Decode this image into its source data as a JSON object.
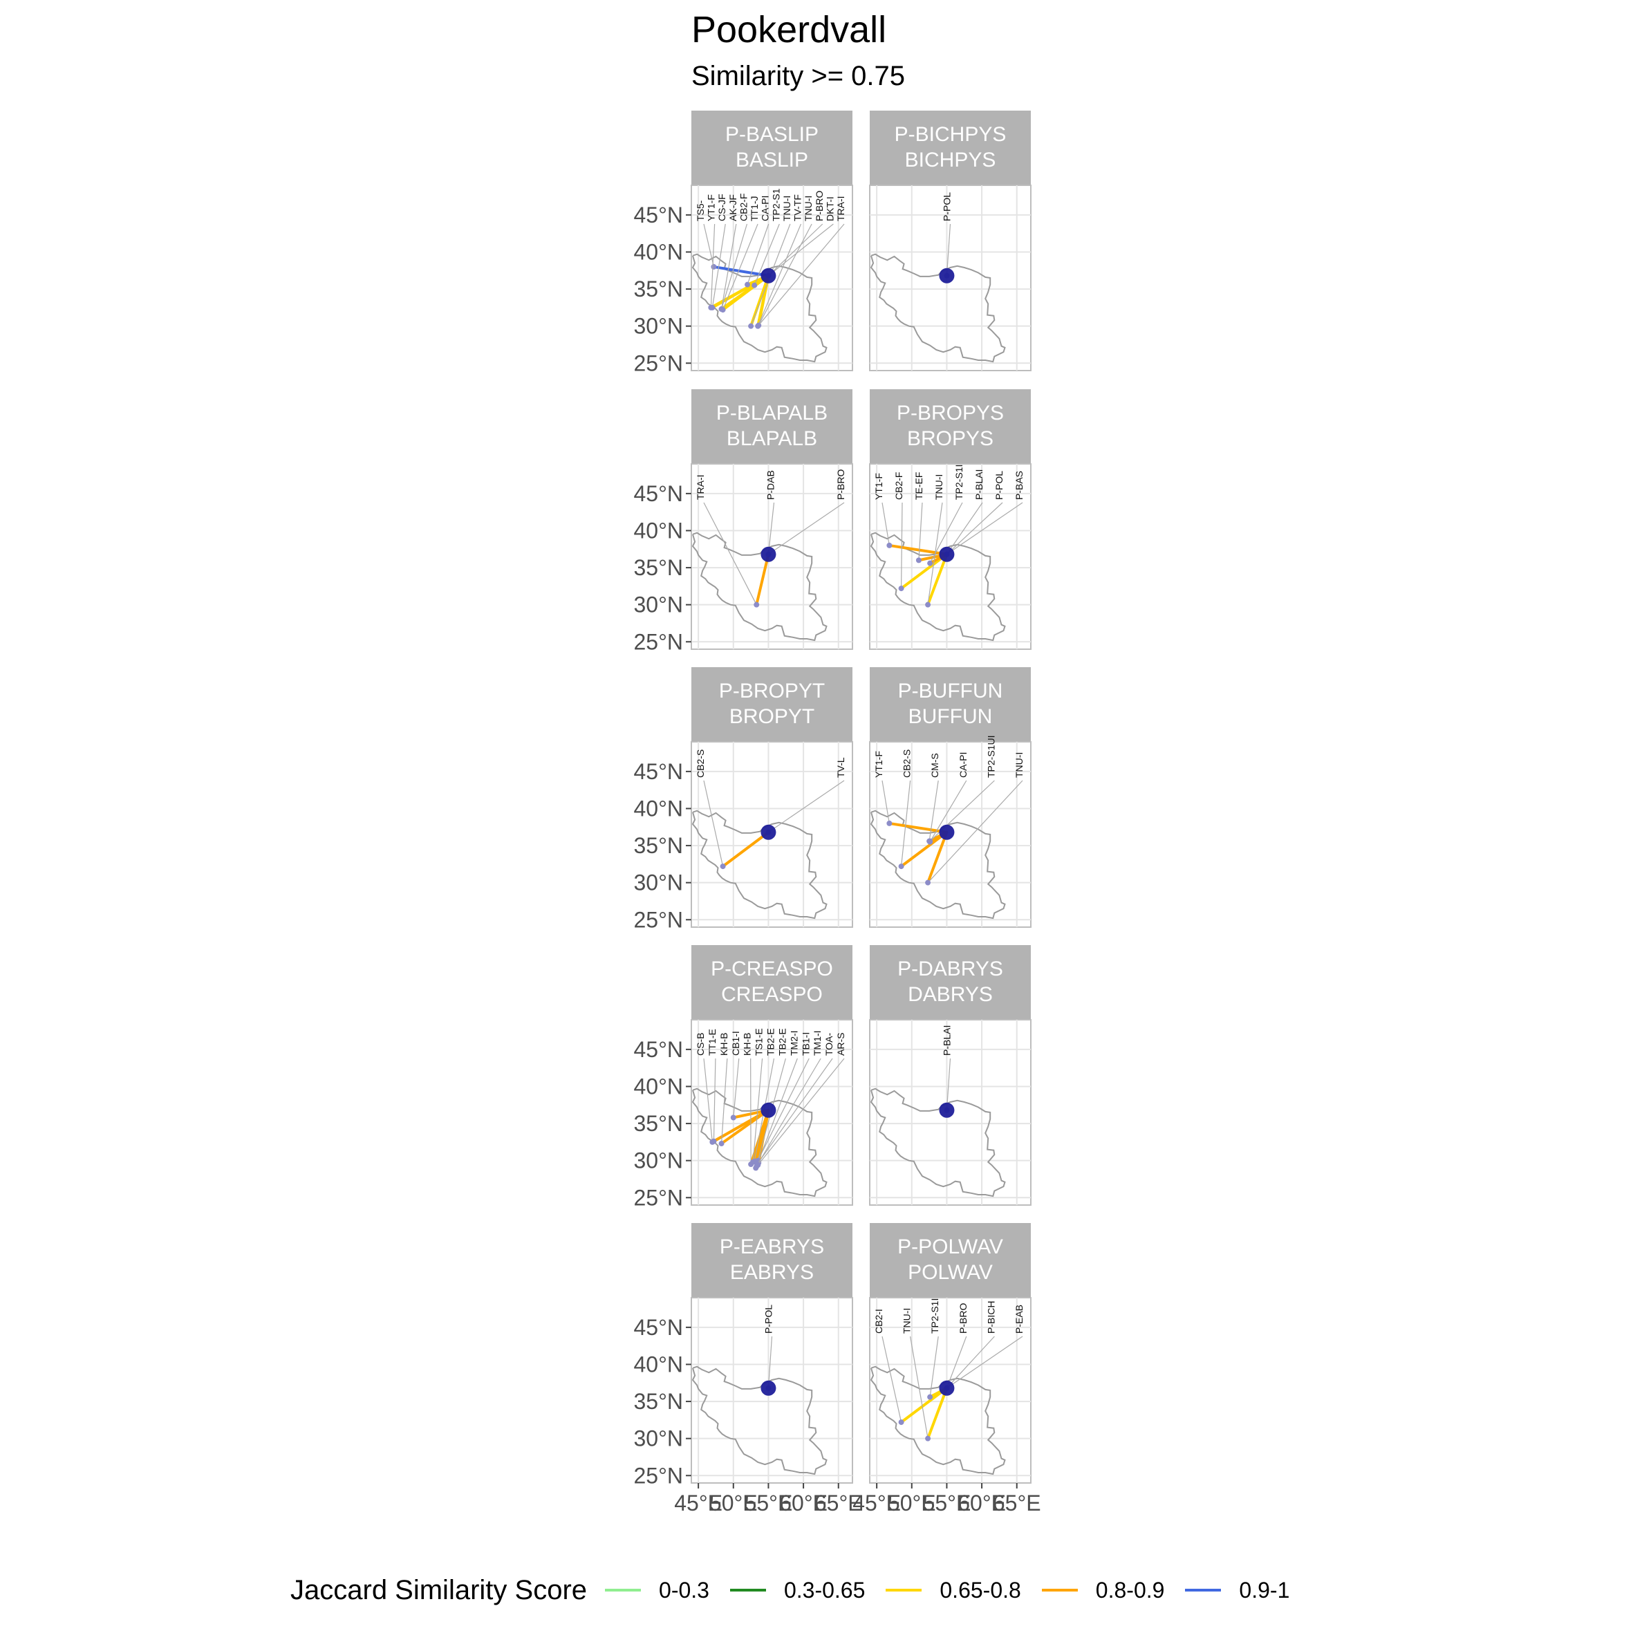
{
  "title": "Pookerdvall",
  "subtitle": "Similarity >= 0.75",
  "legend": {
    "title": "Jaccard Similarity Score",
    "items": [
      {
        "label": "0-0.3",
        "color": "#90EE90"
      },
      {
        "label": "0.3-0.65",
        "color": "#228B22"
      },
      {
        "label": "0.65-0.8",
        "color": "#FFD700"
      },
      {
        "label": "0.8-0.9",
        "color": "#FFA500"
      },
      {
        "label": "0.9-1",
        "color": "#4169E1"
      }
    ]
  },
  "chart_data": {
    "type": "map",
    "xlabel": "",
    "ylabel": "",
    "xlim": [
      44,
      67
    ],
    "ylim": [
      24,
      49
    ],
    "x_ticks": [
      "45°E",
      "50°E",
      "55°E",
      "60°E",
      "65°E"
    ],
    "y_ticks": [
      "45°N",
      "40°N",
      "35°N",
      "30°N",
      "25°N"
    ],
    "x_tick_values": [
      45,
      50,
      55,
      60,
      65
    ],
    "y_tick_values": [
      45,
      40,
      35,
      30,
      25
    ],
    "source_point": {
      "lon": 55.0,
      "lat": 36.8
    },
    "panels": [
      {
        "strip": [
          "P-BASLIP",
          "BASLIP"
        ],
        "links": [
          {
            "label": "TS5-",
            "lon": 47.2,
            "lat": 38.0,
            "cat": "0.9-1"
          },
          {
            "label": "YT1-F",
            "lon": 46.8,
            "lat": 32.5,
            "cat": "0.65-0.8"
          },
          {
            "label": "CS-JF",
            "lon": 47.0,
            "lat": 32.5,
            "cat": "0.65-0.8"
          },
          {
            "label": "AK-JF",
            "lon": 48.3,
            "lat": 32.3,
            "cat": "0.65-0.8"
          },
          {
            "label": "CB2-F",
            "lon": 48.3,
            "lat": 32.3,
            "cat": "0.65-0.8"
          },
          {
            "label": "TT1-J",
            "lon": 48.5,
            "lat": 32.2,
            "cat": "0.65-0.8"
          },
          {
            "label": "CA-PI",
            "lon": 52.0,
            "lat": 35.6,
            "cat": "0.65-0.8"
          },
          {
            "label": "TP2-S1",
            "lon": 53.0,
            "lat": 35.5,
            "cat": "0.65-0.8"
          },
          {
            "label": "TNU-I",
            "lon": 52.5,
            "lat": 30.0,
            "cat": "0.65-0.8"
          },
          {
            "label": "TV-TF",
            "lon": 53.5,
            "lat": 30.0,
            "cat": "0.65-0.8"
          },
          {
            "label": "TNU-I",
            "lon": 53.6,
            "lat": 30.1,
            "cat": "0.65-0.8"
          },
          {
            "label": "P-BRO",
            "lon": 55.0,
            "lat": 36.8,
            "cat": "0.65-0.8"
          },
          {
            "label": "DKT-I",
            "lon": 55.0,
            "lat": 36.8,
            "cat": "0.65-0.8"
          },
          {
            "label": "TRA-I",
            "lon": 53.5,
            "lat": 30.0,
            "cat": "0.65-0.8"
          }
        ]
      },
      {
        "strip": [
          "P-BICHPYS",
          "BICHPYS"
        ],
        "links": [
          {
            "label": "P-POL",
            "lon": 55.0,
            "lat": 36.8,
            "cat": "0.65-0.8"
          }
        ]
      },
      {
        "strip": [
          "P-BLAPALB",
          "BLAPALB"
        ],
        "links": [
          {
            "label": "TRA-I",
            "lon": 53.3,
            "lat": 30.0,
            "cat": "0.8-0.9"
          },
          {
            "label": "P-DAB",
            "lon": 55.0,
            "lat": 36.8,
            "cat": "0.8-0.9"
          },
          {
            "label": "P-BRO",
            "lon": 55.0,
            "lat": 36.8,
            "cat": "0.8-0.9"
          }
        ]
      },
      {
        "strip": [
          "P-BROPYS",
          "BROPYS"
        ],
        "links": [
          {
            "label": "YT1-F",
            "lon": 46.8,
            "lat": 38.0,
            "cat": "0.8-0.9"
          },
          {
            "label": "CB2-F",
            "lon": 48.5,
            "lat": 32.2,
            "cat": "0.65-0.8"
          },
          {
            "label": "TE-EF",
            "lon": 51.0,
            "lat": 36.0,
            "cat": "0.8-0.9"
          },
          {
            "label": "TNU-I",
            "lon": 52.3,
            "lat": 30.0,
            "cat": "0.65-0.8"
          },
          {
            "label": "TP2-S1I",
            "lon": 52.6,
            "lat": 35.6,
            "cat": "0.8-0.9"
          },
          {
            "label": "P-BLAI",
            "lon": 55.0,
            "lat": 36.8,
            "cat": "0.8-0.9"
          },
          {
            "label": "P-POL",
            "lon": 55.0,
            "lat": 36.8,
            "cat": "0.65-0.8"
          },
          {
            "label": "P-BAS",
            "lon": 55.0,
            "lat": 36.8,
            "cat": "0.65-0.8"
          }
        ]
      },
      {
        "strip": [
          "P-BROPYT",
          "BROPYT"
        ],
        "links": [
          {
            "label": "CB2-S",
            "lon": 48.5,
            "lat": 32.2,
            "cat": "0.8-0.9"
          },
          {
            "label": "TV-L",
            "lon": 55.0,
            "lat": 36.8,
            "cat": "0.8-0.9"
          }
        ]
      },
      {
        "strip": [
          "P-BUFFUN",
          "BUFFUN"
        ],
        "links": [
          {
            "label": "YT1-F",
            "lon": 46.8,
            "lat": 38.0,
            "cat": "0.8-0.9"
          },
          {
            "label": "CB2-S",
            "lon": 48.5,
            "lat": 32.2,
            "cat": "0.8-0.9"
          },
          {
            "label": "CM-S",
            "lon": 52.5,
            "lat": 35.6,
            "cat": "0.8-0.9"
          },
          {
            "label": "CA-PI",
            "lon": 52.6,
            "lat": 35.5,
            "cat": "0.8-0.9"
          },
          {
            "label": "TP2-S1UI",
            "lon": 52.6,
            "lat": 35.6,
            "cat": "0.8-0.9"
          },
          {
            "label": "TNU-I",
            "lon": 52.3,
            "lat": 30.0,
            "cat": "0.8-0.9"
          }
        ]
      },
      {
        "strip": [
          "P-CREASPO",
          "CREASPO"
        ],
        "links": [
          {
            "label": "CS-B",
            "lon": 47.0,
            "lat": 32.5,
            "cat": "0.8-0.9"
          },
          {
            "label": "TT1-E",
            "lon": 47.2,
            "lat": 32.6,
            "cat": "0.8-0.9"
          },
          {
            "label": "KH-B",
            "lon": 48.3,
            "lat": 32.3,
            "cat": "0.8-0.9"
          },
          {
            "label": "CB1-I",
            "lon": 50.0,
            "lat": 35.8,
            "cat": "0.8-0.9"
          },
          {
            "label": "KH-B",
            "lon": 52.5,
            "lat": 29.5,
            "cat": "0.8-0.9"
          },
          {
            "label": "TS1-E",
            "lon": 52.8,
            "lat": 29.8,
            "cat": "0.8-0.9"
          },
          {
            "label": "TB2-E",
            "lon": 53.0,
            "lat": 29.9,
            "cat": "0.8-0.9"
          },
          {
            "label": "TB2-E",
            "lon": 53.2,
            "lat": 29.0,
            "cat": "0.8-0.9"
          },
          {
            "label": "TM2-I",
            "lon": 53.3,
            "lat": 29.2,
            "cat": "0.8-0.9"
          },
          {
            "label": "TB1-I",
            "lon": 53.5,
            "lat": 30.0,
            "cat": "0.8-0.9"
          },
          {
            "label": "TM1-I",
            "lon": 53.6,
            "lat": 29.7,
            "cat": "0.8-0.9"
          },
          {
            "label": "TOA-",
            "lon": 53.4,
            "lat": 29.5,
            "cat": "0.8-0.9"
          },
          {
            "label": "AR-S",
            "lon": 53.5,
            "lat": 29.4,
            "cat": "0.8-0.9"
          }
        ]
      },
      {
        "strip": [
          "P-DABRYS",
          "DABRYS"
        ],
        "links": [
          {
            "label": "P-BLAI",
            "lon": 55.0,
            "lat": 36.8,
            "cat": "0.8-0.9"
          }
        ]
      },
      {
        "strip": [
          "P-EABRYS",
          "EABRYS"
        ],
        "links": [
          {
            "label": "P-POL",
            "lon": 55.0,
            "lat": 36.8,
            "cat": "0.65-0.8"
          }
        ]
      },
      {
        "strip": [
          "P-POLWAV",
          "POLWAV"
        ],
        "links": [
          {
            "label": "CB2-I",
            "lon": 48.5,
            "lat": 32.2,
            "cat": "0.65-0.8"
          },
          {
            "label": "TNU-I",
            "lon": 52.3,
            "lat": 30.0,
            "cat": "0.65-0.8"
          },
          {
            "label": "TP2-S1I",
            "lon": 52.6,
            "lat": 35.6,
            "cat": "0.65-0.8"
          },
          {
            "label": "P-BRO",
            "lon": 55.0,
            "lat": 36.8,
            "cat": "0.65-0.8"
          },
          {
            "label": "P-BICH",
            "lon": 55.0,
            "lat": 36.8,
            "cat": "0.65-0.8"
          },
          {
            "label": "P-EAB",
            "lon": 55.0,
            "lat": 36.8,
            "cat": "0.65-0.8"
          }
        ]
      }
    ]
  }
}
